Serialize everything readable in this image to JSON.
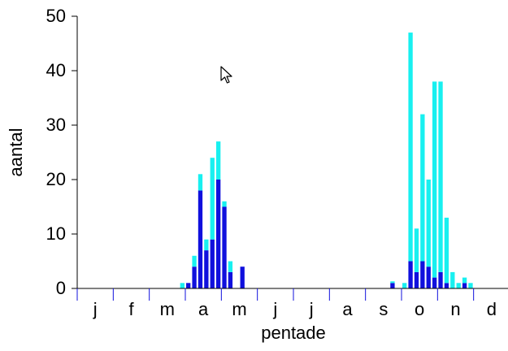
{
  "chart_data": {
    "type": "bar",
    "stacked": true,
    "xlabel": "pentade",
    "ylabel": "aantal",
    "ylim": [
      0,
      50
    ],
    "yticks": [
      0,
      10,
      20,
      30,
      40,
      50
    ],
    "month_labels": [
      "j",
      "f",
      "m",
      "a",
      "m",
      "j",
      "j",
      "a",
      "s",
      "o",
      "n",
      "d"
    ],
    "pentades_per_month": 6,
    "series": [
      {
        "color": "#1010dd",
        "points": [
          {
            "pentade": 19,
            "value": 1
          },
          {
            "pentade": 20,
            "value": 4
          },
          {
            "pentade": 21,
            "value": 18
          },
          {
            "pentade": 22,
            "value": 7
          },
          {
            "pentade": 23,
            "value": 9
          },
          {
            "pentade": 24,
            "value": 20
          },
          {
            "pentade": 25,
            "value": 15
          },
          {
            "pentade": 26,
            "value": 3
          },
          {
            "pentade": 28,
            "value": 4
          },
          {
            "pentade": 53,
            "value": 1
          },
          {
            "pentade": 56,
            "value": 5
          },
          {
            "pentade": 57,
            "value": 3
          },
          {
            "pentade": 58,
            "value": 5
          },
          {
            "pentade": 59,
            "value": 4
          },
          {
            "pentade": 60,
            "value": 2
          },
          {
            "pentade": 61,
            "value": 3
          },
          {
            "pentade": 62,
            "value": 1
          },
          {
            "pentade": 65,
            "value": 1
          }
        ]
      },
      {
        "color": "#18f0f0",
        "points": [
          {
            "pentade": 18,
            "value": 1
          },
          {
            "pentade": 20,
            "value": 2
          },
          {
            "pentade": 21,
            "value": 3
          },
          {
            "pentade": 22,
            "value": 2
          },
          {
            "pentade": 23,
            "value": 15
          },
          {
            "pentade": 24,
            "value": 7
          },
          {
            "pentade": 25,
            "value": 1
          },
          {
            "pentade": 26,
            "value": 2
          },
          {
            "pentade": 53,
            "value": 0.3
          },
          {
            "pentade": 55,
            "value": 1
          },
          {
            "pentade": 56,
            "value": 42
          },
          {
            "pentade": 57,
            "value": 8
          },
          {
            "pentade": 58,
            "value": 27
          },
          {
            "pentade": 59,
            "value": 16
          },
          {
            "pentade": 60,
            "value": 36
          },
          {
            "pentade": 61,
            "value": 35
          },
          {
            "pentade": 62,
            "value": 12
          },
          {
            "pentade": 63,
            "value": 3
          },
          {
            "pentade": 64,
            "value": 1
          },
          {
            "pentade": 65,
            "value": 1
          },
          {
            "pentade": 66,
            "value": 1
          }
        ]
      }
    ]
  }
}
